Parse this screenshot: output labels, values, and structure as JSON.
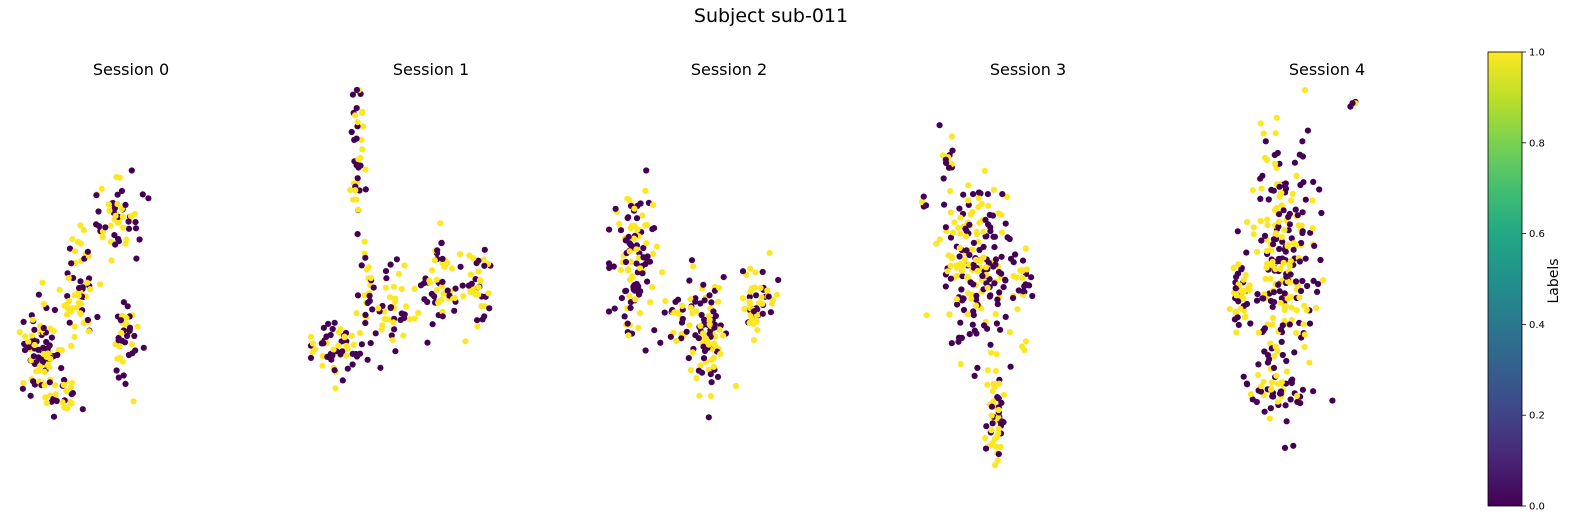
{
  "figure": {
    "title": "Subject sub-011"
  },
  "colors": {
    "label_0": "#440154",
    "label_1": "#fde725",
    "colormap": "viridis"
  },
  "colorbar": {
    "label": "Labels",
    "range": [
      0,
      1
    ],
    "ticks": [
      "0.0",
      "0.2",
      "0.4",
      "0.6",
      "0.8",
      "1.0"
    ]
  },
  "chart_data": [
    {
      "type": "scatter",
      "title": "Session 0",
      "axes": "off",
      "color_variable": "Labels",
      "label_values": [
        0,
        1
      ],
      "clusters": [
        {
          "cx": 11.8,
          "cy": 37.2,
          "sx": 3.8,
          "sy": 5.4,
          "n": 95
        },
        {
          "cx": 28.4,
          "cy": 52.6,
          "sx": 3.6,
          "sy": 8.2,
          "n": 62
        },
        {
          "cx": 44.1,
          "cy": 69.3,
          "sx": 5.3,
          "sy": 4.9,
          "n": 55
        },
        {
          "cx": 47.6,
          "cy": 42.0,
          "sx": 2.6,
          "sy": 4.4,
          "n": 38
        },
        {
          "cx": 21.5,
          "cy": 26.4,
          "sx": 3.1,
          "sy": 3.3,
          "n": 24
        }
      ]
    },
    {
      "type": "scatter",
      "title": "Session 1",
      "axes": "off",
      "color_variable": "Labels",
      "label_values": [
        0,
        1
      ],
      "clusters": [
        {
          "cx": 19.2,
          "cy": 85.4,
          "sx": 1.4,
          "sy": 8.1,
          "n": 38
        },
        {
          "cx": 8.9,
          "cy": 38.6,
          "sx": 6.2,
          "sy": 3.6,
          "n": 60
        },
        {
          "cx": 24.3,
          "cy": 52.1,
          "sx": 2.1,
          "sy": 5.2,
          "n": 22
        },
        {
          "cx": 34.8,
          "cy": 49.2,
          "sx": 5.0,
          "sy": 5.1,
          "n": 45
        },
        {
          "cx": 53.7,
          "cy": 53.6,
          "sx": 5.2,
          "sy": 5.4,
          "n": 50
        },
        {
          "cx": 67.1,
          "cy": 50.8,
          "sx": 4.0,
          "sy": 5.3,
          "n": 42
        }
      ]
    },
    {
      "type": "scatter",
      "title": "Session 2",
      "axes": "off",
      "color_variable": "Labels",
      "label_values": [
        0,
        1
      ],
      "clusters": [
        {
          "cx": 10.6,
          "cy": 60.2,
          "sx": 4.4,
          "sy": 8.6,
          "n": 112
        },
        {
          "cx": 28.5,
          "cy": 45.8,
          "sx": 3.0,
          "sy": 3.4,
          "n": 24
        },
        {
          "cx": 41.3,
          "cy": 42.7,
          "sx": 4.1,
          "sy": 6.1,
          "n": 96
        },
        {
          "cx": 61.9,
          "cy": 50.4,
          "sx": 3.6,
          "sy": 4.3,
          "n": 52
        }
      ]
    },
    {
      "type": "scatter",
      "title": "Session 3",
      "axes": "off",
      "color_variable": "Labels",
      "label_values": [
        0,
        1
      ],
      "clusters": [
        {
          "cx": 28.6,
          "cy": 57.4,
          "sx": 7.8,
          "sy": 9.6,
          "n": 210
        },
        {
          "cx": 17.4,
          "cy": 84.1,
          "sx": 1.4,
          "sy": 2.9,
          "n": 14
        },
        {
          "cx": 36.5,
          "cy": 20.2,
          "sx": 2.0,
          "sy": 6.3,
          "n": 48
        },
        {
          "cx": 47.2,
          "cy": 54.6,
          "sx": 1.6,
          "sy": 2.4,
          "n": 16
        },
        {
          "cx": 47.8,
          "cy": 38.9,
          "sx": 0.8,
          "sy": 1.6,
          "n": 3
        },
        {
          "cx": 7.0,
          "cy": 73.5,
          "sx": 0.6,
          "sy": 1.6,
          "n": 5
        }
      ]
    },
    {
      "type": "scatter",
      "title": "Session 4",
      "axes": "off",
      "color_variable": "Labels",
      "label_values": [
        0,
        1
      ],
      "clusters": [
        {
          "cx": 31.9,
          "cy": 58.4,
          "sx": 6.4,
          "sy": 14.2,
          "n": 250
        },
        {
          "cx": 14.2,
          "cy": 51.6,
          "sx": 2.4,
          "sy": 3.9,
          "n": 48
        },
        {
          "cx": 28.5,
          "cy": 28.3,
          "sx": 7.6,
          "sy": 2.3,
          "n": 42
        },
        {
          "cx": 61.2,
          "cy": 96.8,
          "sx": 1.0,
          "sy": 0.5,
          "n": 4
        }
      ]
    }
  ]
}
